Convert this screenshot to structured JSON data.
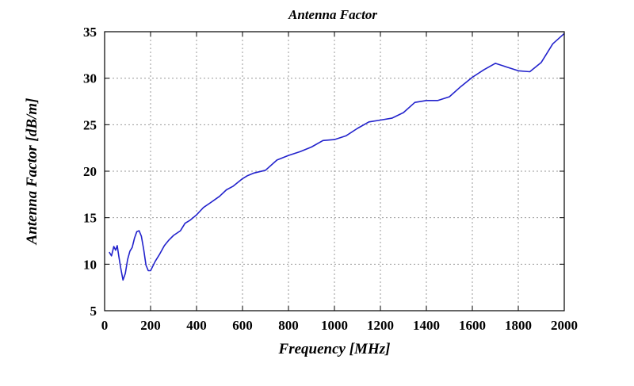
{
  "chart_data": {
    "type": "line",
    "title": "Antenna Factor",
    "xlabel": "Frequency [MHz]",
    "ylabel": "Antenna Factor [dB/m]",
    "xlim": [
      0,
      2000
    ],
    "ylim": [
      5,
      35
    ],
    "xticks": [
      0,
      200,
      400,
      600,
      800,
      1000,
      1200,
      1400,
      1600,
      1800,
      2000
    ],
    "yticks": [
      5,
      10,
      15,
      20,
      25,
      30,
      35
    ],
    "grid": true,
    "series": [
      {
        "color": "#2222cc",
        "x": [
          20,
          30,
          40,
          48,
          55,
          62,
          70,
          80,
          90,
          100,
          110,
          120,
          130,
          140,
          150,
          160,
          170,
          180,
          190,
          200,
          210,
          220,
          240,
          260,
          280,
          300,
          330,
          350,
          370,
          400,
          430,
          460,
          500,
          530,
          560,
          600,
          620,
          650,
          700,
          750,
          800,
          850,
          900,
          950,
          1000,
          1050,
          1100,
          1150,
          1200,
          1250,
          1300,
          1350,
          1400,
          1450,
          1500,
          1550,
          1600,
          1650,
          1700,
          1750,
          1800,
          1850,
          1900,
          1950,
          2000
        ],
        "y": [
          11.3,
          10.9,
          11.9,
          11.5,
          12.0,
          10.8,
          9.6,
          8.3,
          9.0,
          10.5,
          11.4,
          11.8,
          12.8,
          13.5,
          13.6,
          13.0,
          11.6,
          9.9,
          9.3,
          9.3,
          9.8,
          10.3,
          11.1,
          12.0,
          12.6,
          13.1,
          13.6,
          14.4,
          14.7,
          15.3,
          16.1,
          16.6,
          17.3,
          18.0,
          18.4,
          19.2,
          19.5,
          19.8,
          20.1,
          21.2,
          21.7,
          22.1,
          22.6,
          23.3,
          23.4,
          23.8,
          24.6,
          25.3,
          25.5,
          25.7,
          26.3,
          27.4,
          27.6,
          27.6,
          28.0,
          29.1,
          30.1,
          30.9,
          31.6,
          31.2,
          30.8,
          30.7,
          31.7,
          33.7,
          34.8
        ]
      }
    ]
  }
}
